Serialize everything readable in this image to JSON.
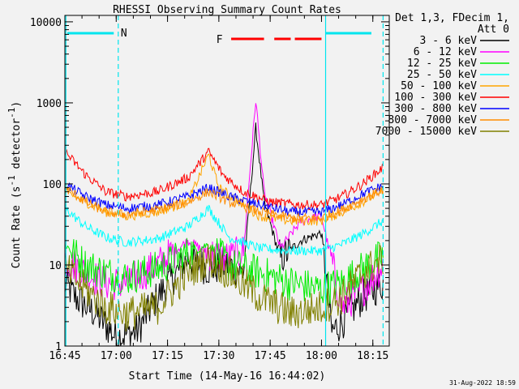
{
  "chart_data": {
    "type": "line",
    "title": "RHESSI Observing Summary Count Rates",
    "xlabel": "Start Time (14-May-16 16:44:02)",
    "ylabel_main": "Count Rate (s",
    "ylabel_sup1": "-1",
    "ylabel_mid": " detector",
    "ylabel_sup2": "-1",
    "ylabel_end": ")",
    "y_scale": "log",
    "ylim": [
      1,
      12000
    ],
    "xlim_minutes": [
      16.75,
      18.33
    ],
    "x_ticks": [
      {
        "t": 16.75,
        "label": "16:45"
      },
      {
        "t": 17.0,
        "label": "17:00"
      },
      {
        "t": 17.25,
        "label": "17:15"
      },
      {
        "t": 17.5,
        "label": "17:30"
      },
      {
        "t": 17.75,
        "label": "17:45"
      },
      {
        "t": 18.0,
        "label": "18:00"
      },
      {
        "t": 18.25,
        "label": "18:15"
      }
    ],
    "y_ticks": [
      {
        "v": 1,
        "label": "1"
      },
      {
        "v": 10,
        "label": "10"
      },
      {
        "v": 100,
        "label": "100"
      },
      {
        "v": 1000,
        "label": "1000"
      },
      {
        "v": 10000,
        "label": "10000"
      }
    ],
    "legend_header": [
      "Det 1,3, FDecim 1,",
      "Att 0"
    ],
    "legend_position": "right",
    "series": [
      {
        "name": "3 - 6 keV",
        "color": "#000000",
        "points": [
          [
            16.75,
            6
          ],
          [
            16.8,
            4
          ],
          [
            16.9,
            2.5
          ],
          [
            17.0,
            1.3
          ],
          [
            17.1,
            1.5
          ],
          [
            17.2,
            4
          ],
          [
            17.35,
            12
          ],
          [
            17.45,
            9
          ],
          [
            17.55,
            10
          ],
          [
            17.62,
            8
          ],
          [
            17.68,
            500
          ],
          [
            17.72,
            60
          ],
          [
            17.8,
            12
          ],
          [
            17.9,
            20
          ],
          [
            18.0,
            25
          ],
          [
            18.05,
            1.5
          ],
          [
            18.1,
            2
          ],
          [
            18.2,
            4
          ],
          [
            18.3,
            6
          ]
        ]
      },
      {
        "name": "6 - 12 keV",
        "color": "#ff00ff",
        "points": [
          [
            16.75,
            12
          ],
          [
            16.85,
            8
          ],
          [
            16.95,
            6
          ],
          [
            17.05,
            6
          ],
          [
            17.2,
            10
          ],
          [
            17.35,
            20
          ],
          [
            17.45,
            14
          ],
          [
            17.55,
            12
          ],
          [
            17.62,
            15
          ],
          [
            17.68,
            1100
          ],
          [
            17.72,
            80
          ],
          [
            17.8,
            16
          ],
          [
            17.9,
            35
          ],
          [
            18.0,
            40
          ],
          [
            18.1,
            3
          ],
          [
            18.2,
            5
          ],
          [
            18.3,
            10
          ]
        ]
      },
      {
        "name": "12 - 25 keV",
        "color": "#00ee00",
        "points": [
          [
            16.75,
            18
          ],
          [
            16.85,
            10
          ],
          [
            16.95,
            8
          ],
          [
            17.05,
            7
          ],
          [
            17.2,
            9
          ],
          [
            17.35,
            14
          ],
          [
            17.45,
            18
          ],
          [
            17.55,
            10
          ],
          [
            17.7,
            8
          ],
          [
            17.85,
            6
          ],
          [
            18.0,
            5
          ],
          [
            18.1,
            6
          ],
          [
            18.2,
            9
          ],
          [
            18.3,
            13
          ]
        ]
      },
      {
        "name": "25 - 50 keV",
        "color": "#00ffff",
        "points": [
          [
            16.75,
            50
          ],
          [
            16.85,
            30
          ],
          [
            16.95,
            22
          ],
          [
            17.05,
            19
          ],
          [
            17.2,
            21
          ],
          [
            17.35,
            30
          ],
          [
            17.45,
            50
          ],
          [
            17.55,
            22
          ],
          [
            17.7,
            16
          ],
          [
            17.85,
            15
          ],
          [
            18.0,
            15
          ],
          [
            18.1,
            18
          ],
          [
            18.2,
            24
          ],
          [
            18.3,
            35
          ]
        ]
      },
      {
        "name": "50 - 100 keV",
        "color": "#ffa500",
        "points": [
          [
            16.75,
            80
          ],
          [
            16.85,
            60
          ],
          [
            16.95,
            45
          ],
          [
            17.05,
            40
          ],
          [
            17.2,
            45
          ],
          [
            17.35,
            60
          ],
          [
            17.45,
            230
          ],
          [
            17.5,
            90
          ],
          [
            17.6,
            60
          ],
          [
            17.7,
            40
          ],
          [
            17.85,
            35
          ],
          [
            18.0,
            35
          ],
          [
            18.1,
            45
          ],
          [
            18.2,
            60
          ],
          [
            18.3,
            85
          ]
        ]
      },
      {
        "name": "100 - 300 keV",
        "color": "#ff0000",
        "points": [
          [
            16.75,
            250
          ],
          [
            16.85,
            130
          ],
          [
            16.95,
            80
          ],
          [
            17.05,
            70
          ],
          [
            17.2,
            80
          ],
          [
            17.35,
            120
          ],
          [
            17.45,
            250
          ],
          [
            17.52,
            130
          ],
          [
            17.62,
            80
          ],
          [
            17.75,
            60
          ],
          [
            17.9,
            55
          ],
          [
            18.0,
            55
          ],
          [
            18.1,
            70
          ],
          [
            18.2,
            100
          ],
          [
            18.3,
            160
          ]
        ]
      },
      {
        "name": "300 - 800 keV",
        "color": "#0000ff",
        "points": [
          [
            16.75,
            100
          ],
          [
            16.85,
            70
          ],
          [
            16.95,
            55
          ],
          [
            17.05,
            50
          ],
          [
            17.2,
            55
          ],
          [
            17.35,
            70
          ],
          [
            17.45,
            90
          ],
          [
            17.55,
            70
          ],
          [
            17.7,
            55
          ],
          [
            17.85,
            45
          ],
          [
            18.0,
            45
          ],
          [
            18.1,
            55
          ],
          [
            18.2,
            75
          ],
          [
            18.3,
            95
          ]
        ]
      },
      {
        "name": "800 - 7000 keV",
        "color": "#ff8c00",
        "points": [
          [
            16.75,
            90
          ],
          [
            16.85,
            60
          ],
          [
            16.95,
            45
          ],
          [
            17.05,
            42
          ],
          [
            17.2,
            48
          ],
          [
            17.35,
            60
          ],
          [
            17.45,
            80
          ],
          [
            17.55,
            60
          ],
          [
            17.7,
            45
          ],
          [
            17.85,
            38
          ],
          [
            18.0,
            38
          ],
          [
            18.1,
            48
          ],
          [
            18.2,
            65
          ],
          [
            18.3,
            85
          ]
        ]
      },
      {
        "name": "7000 - 15000 keV",
        "color": "#808000",
        "points": [
          [
            16.75,
            9
          ],
          [
            16.85,
            5
          ],
          [
            16.95,
            3
          ],
          [
            17.05,
            2.5
          ],
          [
            17.2,
            3
          ],
          [
            17.35,
            8
          ],
          [
            17.45,
            12
          ],
          [
            17.55,
            8
          ],
          [
            17.7,
            4
          ],
          [
            17.85,
            2.5
          ],
          [
            18.0,
            3
          ],
          [
            18.1,
            4
          ],
          [
            18.2,
            8
          ],
          [
            18.3,
            12
          ]
        ]
      }
    ],
    "annotations": {
      "night_label": "N",
      "flare_label": "F",
      "date_stamp": "31-Aug-2022 18:59"
    }
  }
}
